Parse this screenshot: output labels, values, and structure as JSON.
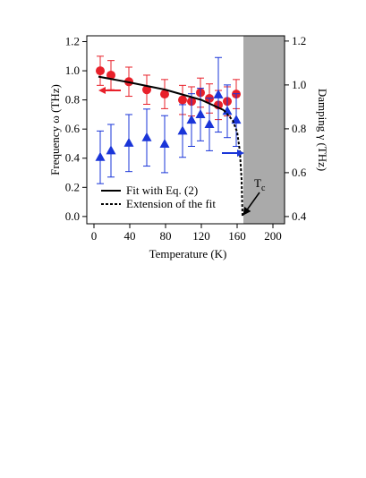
{
  "chart_data": {
    "type": "line",
    "x_label": "Temperature (K)",
    "y_label": "Frequency ω (THz)",
    "y2_label": "Damping γ (THz)",
    "xlim": [
      -8,
      213
    ],
    "xticks": [
      0,
      40,
      80,
      120,
      160,
      200
    ],
    "ylim": [
      -0.05,
      1.24
    ],
    "yticks": [
      {
        "value": 0,
        "label": "0.0"
      },
      0.2,
      0.4,
      0.6,
      0.8,
      {
        "value": 1,
        "label": "1.0"
      },
      1.2
    ],
    "y2lim": [
      0.367,
      1.224
    ],
    "y2ticks": [
      0.4,
      0.6,
      0.8,
      {
        "value": 1,
        "label": "1.0"
      },
      1.2
    ],
    "shaded_from": 167,
    "shade_color": "#aaaaaa",
    "series": [
      {
        "name": "Frequency",
        "kind": "points",
        "marker": "circle",
        "color": "#e8202a",
        "axis": "y",
        "x": [
          7,
          19,
          39,
          59,
          79,
          99,
          109,
          119,
          129,
          139,
          149,
          159
        ],
        "values": [
          1.0,
          0.97,
          0.925,
          0.87,
          0.84,
          0.8,
          0.79,
          0.85,
          0.81,
          0.765,
          0.79,
          0.84
        ],
        "errors": [
          0.1,
          0.1,
          0.1,
          0.1,
          0.1,
          0.1,
          0.1,
          0.1,
          0.1,
          0.1,
          0.1,
          0.1
        ]
      },
      {
        "name": "Damping",
        "kind": "points",
        "marker": "triangle",
        "color": "#1a35d8",
        "axis": "y2",
        "x": [
          7,
          19,
          39,
          59,
          79,
          99,
          109,
          119,
          129,
          139,
          149,
          159
        ],
        "values": [
          0.67,
          0.7,
          0.735,
          0.76,
          0.73,
          0.79,
          0.84,
          0.865,
          0.82,
          0.955,
          0.88,
          0.84
        ],
        "errors": [
          0.12,
          0.12,
          0.13,
          0.13,
          0.13,
          0.12,
          0.12,
          0.12,
          0.12,
          0.17,
          0.12,
          0.12
        ]
      },
      {
        "name": "Fit with Eq. (2)",
        "kind": "line",
        "dash": false,
        "color": "#000000",
        "axis": "y",
        "x": [
          5,
          40,
          80,
          120,
          145
        ],
        "values": [
          0.96,
          0.92,
          0.87,
          0.8,
          0.73
        ]
      },
      {
        "name": "Extension of the fit",
        "kind": "line",
        "dash": true,
        "color": "#000000",
        "axis": "y",
        "x": [
          145,
          155,
          160,
          163,
          165,
          166
        ],
        "values": [
          0.73,
          0.66,
          0.58,
          0.45,
          0.25,
          0.0
        ]
      }
    ],
    "annotation": {
      "text": "T",
      "subscript": "c"
    }
  }
}
